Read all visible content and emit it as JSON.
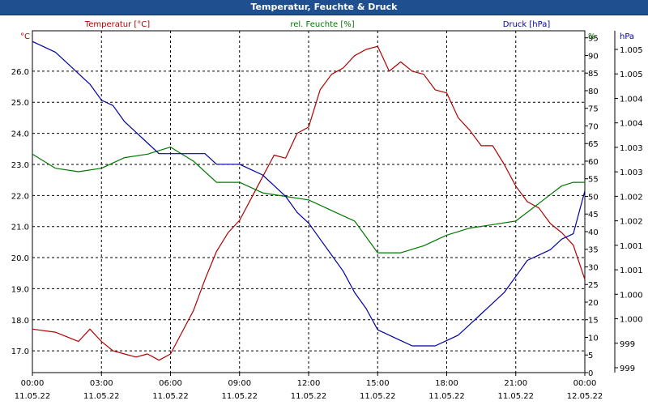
{
  "window": {
    "title": "Temperatur, Feuchte & Druck"
  },
  "colors": {
    "temperature": "#b00000",
    "humidity": "#007800",
    "pressure": "#0000a0",
    "grid": "#000000",
    "titlebar": "#1f4f8f"
  },
  "chart_data": {
    "type": "line",
    "title": "Temperatur, Feuchte & Druck",
    "grid": true,
    "x_ticks": [
      {
        "time": "00:00",
        "date": "11.05.22"
      },
      {
        "time": "03:00",
        "date": "11.05.22"
      },
      {
        "time": "06:00",
        "date": "11.05.22"
      },
      {
        "time": "09:00",
        "date": "11.05.22"
      },
      {
        "time": "12:00",
        "date": "11.05.22"
      },
      {
        "time": "15:00",
        "date": "11.05.22"
      },
      {
        "time": "18:00",
        "date": "11.05.22"
      },
      {
        "time": "21:00",
        "date": "11.05.22"
      },
      {
        "time": "00:00",
        "date": "12.05.22"
      }
    ],
    "axes": {
      "temperature": {
        "label": "Temperatur [°C]",
        "unit": "°C",
        "ylim": [
          16.3,
          27.3
        ],
        "ticks": [
          "17.0",
          "18.0",
          "19.0",
          "20.0",
          "21.0",
          "22.0",
          "23.0",
          "24.0",
          "25.0",
          "26.0"
        ]
      },
      "humidity": {
        "label": "rel. Feuchte [%]",
        "unit": "%",
        "ylim": [
          0,
          97
        ],
        "ticks": [
          "0",
          "5",
          "10",
          "15",
          "20",
          "25",
          "30",
          "35",
          "40",
          "45",
          "50",
          "55",
          "60",
          "65",
          "70",
          "75",
          "80",
          "85",
          "90",
          "95"
        ]
      },
      "pressure": {
        "label": "Druck [hPa]",
        "unit": "hPa",
        "ylim": [
          998.8,
          1005.2
        ],
        "ticks": [
          "999",
          "999",
          "1.000",
          "1.000",
          "1.001",
          "1.001",
          "1.002",
          "1.002",
          "1.003",
          "1.003",
          "1.004",
          "1.004",
          "1.005",
          "1.005"
        ]
      }
    },
    "series": [
      {
        "name": "Temperatur [°C]",
        "axis": "temperature",
        "x_hours": [
          0,
          1,
          2,
          2.5,
          3,
          3.5,
          4,
          4.5,
          5,
          5.5,
          6,
          6.5,
          7,
          7.5,
          8,
          8.5,
          9,
          9.5,
          10,
          10.5,
          11,
          11.5,
          12,
          12.5,
          13,
          13.5,
          14,
          14.5,
          15,
          15.5,
          16,
          16.5,
          17,
          17.5,
          18,
          18.5,
          19,
          19.5,
          20,
          20.5,
          21,
          21.5,
          22,
          22.5,
          23,
          23.5,
          24
        ],
        "values": [
          17.7,
          17.6,
          17.3,
          17.7,
          17.3,
          17.0,
          16.9,
          16.8,
          16.9,
          16.7,
          16.9,
          17.6,
          18.3,
          19.3,
          20.2,
          20.8,
          21.2,
          21.9,
          22.6,
          23.3,
          23.2,
          24.0,
          24.2,
          25.4,
          25.9,
          26.1,
          26.5,
          26.7,
          26.8,
          26.0,
          26.3,
          26.0,
          25.9,
          25.4,
          25.3,
          24.5,
          24.1,
          23.6,
          23.6,
          23.0,
          22.3,
          21.8,
          21.6,
          21.1,
          20.8,
          20.4,
          19.3
        ]
      },
      {
        "name": "rel. Feuchte [%]",
        "axis": "humidity",
        "x_hours": [
          0,
          1,
          2,
          3,
          4,
          5,
          6,
          7,
          8,
          9,
          10,
          11,
          12,
          13,
          14,
          15,
          16,
          17,
          18,
          19,
          20,
          21,
          22,
          23,
          23.5,
          24
        ],
        "values": [
          62,
          58,
          57,
          58,
          61,
          62,
          64,
          60,
          54,
          54,
          51,
          50,
          49,
          46,
          43,
          34,
          34,
          36,
          39,
          41,
          42,
          43,
          48,
          53,
          54,
          54
        ]
      },
      {
        "name": "Druck [hPa]",
        "axis": "pressure",
        "x_hours": [
          0,
          0.5,
          1,
          1.5,
          2,
          2.5,
          3,
          3.5,
          4,
          4.5,
          5,
          5.5,
          6,
          6.5,
          7,
          7.5,
          8,
          8.5,
          9,
          9.5,
          10,
          10.5,
          11,
          11.5,
          12,
          12.5,
          13,
          13.5,
          14,
          14.5,
          15,
          15.5,
          16,
          16.5,
          17,
          17.5,
          18,
          18.5,
          19,
          19.5,
          20,
          20.5,
          21,
          21.5,
          22,
          22.5,
          23,
          23.5,
          24
        ],
        "values": [
          1005.0,
          1004.9,
          1004.8,
          1004.6,
          1004.4,
          1004.2,
          1003.9,
          1003.8,
          1003.5,
          1003.3,
          1003.1,
          1002.9,
          1002.9,
          1002.9,
          1002.9,
          1002.9,
          1002.7,
          1002.7,
          1002.7,
          1002.6,
          1002.5,
          1002.3,
          1002.1,
          1001.8,
          1001.6,
          1001.3,
          1001.0,
          1000.7,
          1000.3,
          1000.0,
          999.6,
          999.5,
          999.4,
          999.3,
          999.3,
          999.3,
          999.4,
          999.5,
          999.7,
          999.9,
          1000.1,
          1000.3,
          1000.6,
          1000.9,
          1001.0,
          1001.1,
          1001.3,
          1001.4,
          1002.2
        ]
      }
    ]
  }
}
